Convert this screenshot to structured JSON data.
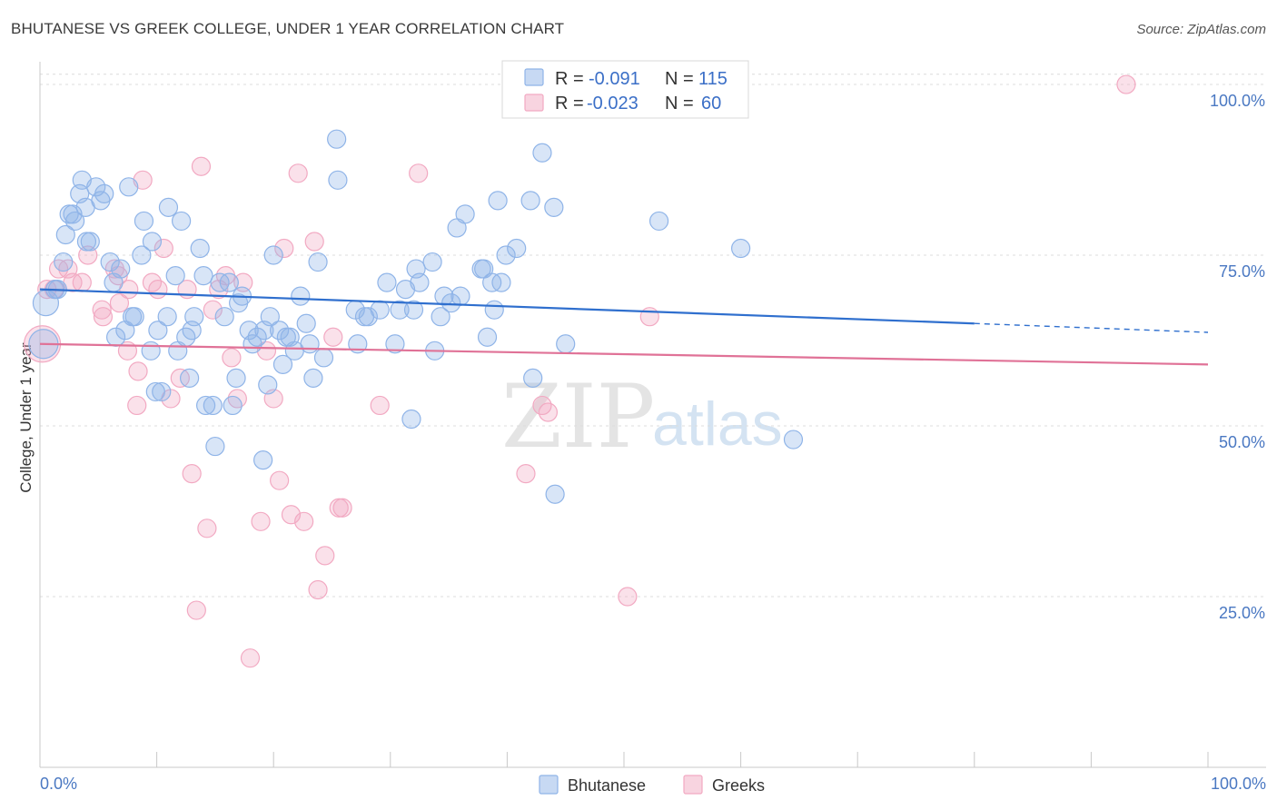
{
  "header": {
    "title": "BHUTANESE VS GREEK COLLEGE, UNDER 1 YEAR CORRELATION CHART",
    "source": "Source: ZipAtlas.com"
  },
  "watermark": {
    "zip": "ZIP",
    "atlas": "atlas"
  },
  "legend_top": [
    {
      "r_label": "R =",
      "r_value": "-0.091",
      "n_label": "N =",
      "n_value": "115",
      "color": "#8fb4e8"
    },
    {
      "r_label": "R =",
      "r_value": "-0.023",
      "n_label": "N =",
      "n_value": "60",
      "color": "#f2a9c2"
    }
  ],
  "legend_bottom": [
    {
      "label": "Bhutanese",
      "color": "#8fb4e8"
    },
    {
      "label": "Greeks",
      "color": "#f2a9c2"
    }
  ],
  "chart_data": {
    "type": "scatter",
    "title": "BHUTANESE VS GREEK COLLEGE, UNDER 1 YEAR CORRELATION CHART",
    "xlabel": "",
    "ylabel": "College, Under 1 year",
    "xlim": [
      0,
      100
    ],
    "ylim": [
      0,
      102
    ],
    "x_tick_labels": [
      "0.0%",
      "100.0%"
    ],
    "y_ticks": [
      25,
      50,
      75,
      100
    ],
    "y_tick_labels": [
      "25.0%",
      "50.0%",
      "75.0%",
      "100.0%"
    ],
    "grid": true,
    "legend_position": "top-center",
    "series": [
      {
        "name": "Bhutanese",
        "color": "#8fb4e8",
        "trend_color": "#2f6fce",
        "trend": {
          "x": [
            0,
            80
          ],
          "y": [
            70.0,
            65.0
          ],
          "dashed_to": 100,
          "dashed_y": 63.7
        },
        "points": [
          [
            0.3,
            62,
            16
          ],
          [
            0.5,
            68,
            14
          ],
          [
            1.3,
            70,
            10
          ],
          [
            1.5,
            70,
            10
          ],
          [
            2.0,
            74,
            10
          ],
          [
            2.2,
            78,
            10
          ],
          [
            2.5,
            81,
            10
          ],
          [
            2.8,
            81,
            10
          ],
          [
            3.0,
            80,
            10
          ],
          [
            3.4,
            84,
            10
          ],
          [
            3.6,
            86,
            10
          ],
          [
            3.9,
            82,
            10
          ],
          [
            4.0,
            77,
            10
          ],
          [
            4.3,
            77,
            10
          ],
          [
            4.8,
            85,
            10
          ],
          [
            5.2,
            83,
            10
          ],
          [
            5.5,
            84,
            10
          ],
          [
            6.0,
            74,
            10
          ],
          [
            6.3,
            71,
            10
          ],
          [
            6.5,
            63,
            10
          ],
          [
            6.9,
            73,
            10
          ],
          [
            7.3,
            64,
            10
          ],
          [
            7.6,
            85,
            10
          ],
          [
            7.9,
            66,
            10
          ],
          [
            8.1,
            66,
            10
          ],
          [
            8.7,
            75,
            10
          ],
          [
            8.9,
            80,
            10
          ],
          [
            9.5,
            61,
            10
          ],
          [
            9.6,
            77,
            10
          ],
          [
            9.9,
            55,
            10
          ],
          [
            10.1,
            64,
            10
          ],
          [
            10.4,
            55,
            10
          ],
          [
            10.9,
            66,
            10
          ],
          [
            11.0,
            82,
            10
          ],
          [
            11.6,
            72,
            10
          ],
          [
            11.8,
            61,
            10
          ],
          [
            12.1,
            80,
            10
          ],
          [
            12.5,
            63,
            10
          ],
          [
            12.8,
            57,
            10
          ],
          [
            13.0,
            64,
            10
          ],
          [
            13.2,
            66,
            10
          ],
          [
            13.7,
            76,
            10
          ],
          [
            14.0,
            72,
            10
          ],
          [
            14.2,
            53,
            10
          ],
          [
            14.8,
            53,
            10
          ],
          [
            15.0,
            47,
            10
          ],
          [
            15.4,
            71,
            10
          ],
          [
            15.8,
            66,
            10
          ],
          [
            16.2,
            71,
            10
          ],
          [
            16.5,
            53,
            10
          ],
          [
            16.8,
            57,
            10
          ],
          [
            17.0,
            68,
            10
          ],
          [
            17.3,
            69,
            10
          ],
          [
            17.9,
            64,
            10
          ],
          [
            18.2,
            62,
            10
          ],
          [
            18.6,
            63,
            10
          ],
          [
            19.1,
            45,
            10
          ],
          [
            19.2,
            64,
            10
          ],
          [
            19.5,
            56,
            10
          ],
          [
            19.7,
            66,
            10
          ],
          [
            20.0,
            75,
            10
          ],
          [
            20.5,
            64,
            10
          ],
          [
            20.8,
            59,
            10
          ],
          [
            21.1,
            63,
            10
          ],
          [
            21.4,
            63,
            10
          ],
          [
            21.8,
            61,
            10
          ],
          [
            22.3,
            69,
            10
          ],
          [
            22.8,
            65,
            10
          ],
          [
            23.1,
            62,
            10
          ],
          [
            23.4,
            57,
            10
          ],
          [
            23.8,
            74,
            10
          ],
          [
            24.3,
            60,
            10
          ],
          [
            25.4,
            92,
            10
          ],
          [
            25.5,
            86,
            10
          ],
          [
            27.0,
            67,
            10
          ],
          [
            27.2,
            62,
            10
          ],
          [
            27.8,
            66,
            10
          ],
          [
            28.1,
            66,
            10
          ],
          [
            29.1,
            67,
            10
          ],
          [
            29.7,
            71,
            10
          ],
          [
            30.4,
            62,
            10
          ],
          [
            30.8,
            67,
            10
          ],
          [
            31.3,
            70,
            10
          ],
          [
            31.8,
            51,
            10
          ],
          [
            32.0,
            67,
            10
          ],
          [
            32.2,
            73,
            10
          ],
          [
            32.5,
            71,
            10
          ],
          [
            33.6,
            74,
            10
          ],
          [
            33.8,
            61,
            10
          ],
          [
            34.3,
            66,
            10
          ],
          [
            34.6,
            69,
            10
          ],
          [
            35.2,
            68,
            10
          ],
          [
            35.7,
            79,
            10
          ],
          [
            36.0,
            69,
            10
          ],
          [
            36.4,
            81,
            10
          ],
          [
            37.8,
            73,
            10
          ],
          [
            38.0,
            73,
            10
          ],
          [
            38.3,
            63,
            10
          ],
          [
            38.7,
            71,
            10
          ],
          [
            38.9,
            67,
            10
          ],
          [
            39.2,
            83,
            10
          ],
          [
            39.5,
            71,
            10
          ],
          [
            39.9,
            75,
            10
          ],
          [
            40.8,
            76,
            10
          ],
          [
            42.0,
            83,
            10
          ],
          [
            42.2,
            57,
            10
          ],
          [
            43.0,
            90,
            10
          ],
          [
            44.0,
            82,
            10
          ],
          [
            44.1,
            40,
            10
          ],
          [
            45.0,
            62,
            10
          ],
          [
            53.0,
            80,
            10
          ],
          [
            60.0,
            76,
            10
          ],
          [
            64.5,
            48,
            10
          ]
        ]
      },
      {
        "name": "Greeks",
        "color": "#f2a9c2",
        "trend_color": "#e07297",
        "trend": {
          "x": [
            0,
            100
          ],
          "y": [
            62.0,
            59.0
          ]
        },
        "points": [
          [
            0.2,
            62,
            20
          ],
          [
            0.6,
            70,
            10
          ],
          [
            1.2,
            70,
            10
          ],
          [
            1.6,
            73,
            10
          ],
          [
            2.4,
            73,
            10
          ],
          [
            2.8,
            71,
            10
          ],
          [
            3.6,
            71,
            10
          ],
          [
            4.1,
            75,
            10
          ],
          [
            5.3,
            67,
            10
          ],
          [
            5.4,
            66,
            10
          ],
          [
            6.4,
            73,
            10
          ],
          [
            6.7,
            72,
            10
          ],
          [
            6.8,
            68,
            10
          ],
          [
            7.5,
            61,
            10
          ],
          [
            7.6,
            70,
            10
          ],
          [
            8.3,
            53,
            10
          ],
          [
            8.4,
            58,
            10
          ],
          [
            8.8,
            86,
            10
          ],
          [
            9.6,
            71,
            10
          ],
          [
            10.1,
            70,
            10
          ],
          [
            10.6,
            76,
            10
          ],
          [
            11.2,
            54,
            10
          ],
          [
            12.0,
            57,
            10
          ],
          [
            12.6,
            70,
            10
          ],
          [
            13.0,
            43,
            10
          ],
          [
            13.4,
            23,
            10
          ],
          [
            13.8,
            88,
            10
          ],
          [
            14.3,
            35,
            10
          ],
          [
            14.8,
            67,
            10
          ],
          [
            15.3,
            70,
            10
          ],
          [
            15.9,
            72,
            10
          ],
          [
            16.4,
            60,
            10
          ],
          [
            16.9,
            54,
            10
          ],
          [
            17.4,
            71,
            10
          ],
          [
            18.0,
            16,
            10
          ],
          [
            18.9,
            36,
            10
          ],
          [
            19.4,
            61,
            10
          ],
          [
            20.0,
            54,
            10
          ],
          [
            20.5,
            42,
            10
          ],
          [
            20.9,
            76,
            10
          ],
          [
            21.5,
            37,
            10
          ],
          [
            22.1,
            87,
            10
          ],
          [
            22.6,
            36,
            10
          ],
          [
            23.5,
            77,
            10
          ],
          [
            23.8,
            26,
            10
          ],
          [
            24.4,
            31,
            10
          ],
          [
            25.1,
            63,
            10
          ],
          [
            25.6,
            38,
            10
          ],
          [
            25.9,
            38,
            10
          ],
          [
            29.1,
            53,
            10
          ],
          [
            32.4,
            87,
            10
          ],
          [
            41.6,
            43,
            10
          ],
          [
            43.0,
            53,
            10
          ],
          [
            43.5,
            52,
            10
          ],
          [
            50.3,
            25,
            10
          ],
          [
            52.2,
            66,
            10
          ],
          [
            56.2,
            100,
            10
          ],
          [
            93.0,
            100,
            10
          ]
        ]
      }
    ]
  }
}
